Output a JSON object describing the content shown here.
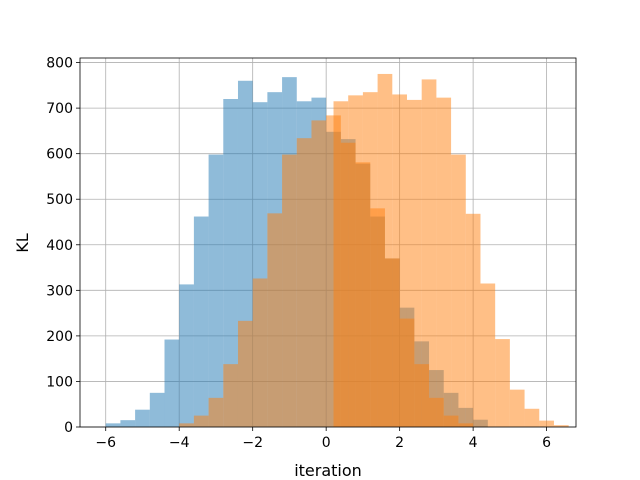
{
  "chart_data": {
    "type": "bar",
    "title": "",
    "xlabel": "iteration",
    "ylabel": "KL",
    "xlim": [
      -6.7,
      6.8
    ],
    "ylim": [
      0,
      810
    ],
    "xticks": [
      -6,
      -4,
      -2,
      0,
      2,
      4,
      6
    ],
    "xtick_labels": [
      "−6",
      "−4",
      "−2",
      "0",
      "2",
      "4",
      "6"
    ],
    "yticks": [
      0,
      100,
      200,
      300,
      400,
      500,
      600,
      700,
      800
    ],
    "ytick_labels": [
      "0",
      "100",
      "200",
      "300",
      "400",
      "500",
      "600",
      "700",
      "800"
    ],
    "grid": true,
    "legend": "none",
    "series": [
      {
        "color": "#1f77b4",
        "opacity": 0.5,
        "bin_start": -6.0,
        "bin_width": 0.4,
        "values": [
          8,
          15,
          38,
          75,
          192,
          313,
          462,
          598,
          720,
          760,
          713,
          735,
          768,
          715,
          723,
          648,
          632,
          578,
          462,
          370,
          262,
          188,
          125,
          75,
          42,
          16
        ]
      },
      {
        "color": "#ff7f0e",
        "opacity": 0.5,
        "bin_start": -4.0,
        "bin_width": 0.4,
        "values": [
          8,
          25,
          64,
          138,
          233,
          326,
          469,
          598,
          634,
          673,
          684,
          624,
          581,
          480,
          370,
          238,
          138,
          64,
          25,
          8,
          0,
          0,
          0,
          0,
          0,
          0,
          0,
          0,
          0,
          0,
          0,
          0
        ]
      },
      {
        "color": "#ff7f0e",
        "opacity": 0.5,
        "bin_start": -0.2,
        "bin_width": 0.4,
        "values": [
          0,
          715,
          728,
          735,
          775,
          730,
          718,
          763,
          723,
          598,
          468,
          315,
          193,
          82,
          40,
          14,
          4
        ]
      }
    ]
  }
}
